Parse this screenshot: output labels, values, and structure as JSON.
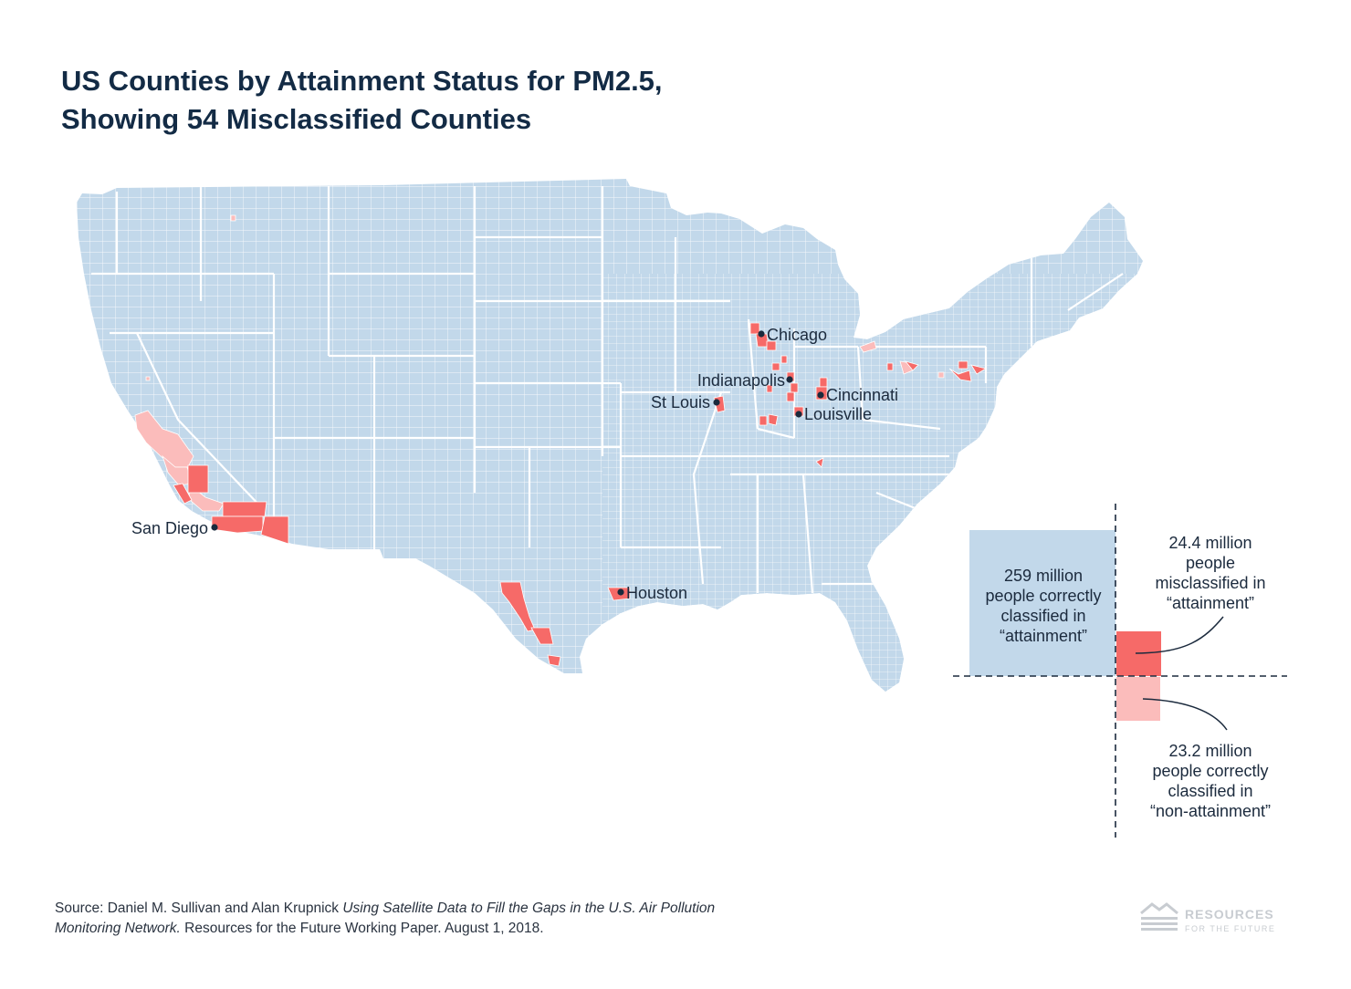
{
  "title": {
    "line1": "US Counties by Attainment Status for PM2.5,",
    "line2": "Showing 54 Misclassified Counties"
  },
  "colors": {
    "attainment_correct": "#c2d8ea",
    "misclassified_attainment": "#f66a68",
    "nonattainment_correct": "#fbbcbb",
    "county_border": "#ffffff",
    "text": "#1b2a3d"
  },
  "cities": [
    {
      "name": "Chicago"
    },
    {
      "name": "Indianapolis"
    },
    {
      "name": "Cincinnati"
    },
    {
      "name": "St Louis"
    },
    {
      "name": "Louisville"
    },
    {
      "name": "San Diego"
    },
    {
      "name": "Houston"
    }
  ],
  "legend": {
    "correct_attainment": {
      "lines": [
        "259 million",
        "people correctly",
        "classified in",
        "“attainment”"
      ],
      "population_millions": 259
    },
    "misclassified_attainment": {
      "lines": [
        "24.4 million",
        "people",
        "misclassified in",
        "“attainment”"
      ],
      "population_millions": 24.4
    },
    "correct_nonattainment": {
      "lines": [
        "23.2 million",
        "people correctly",
        "classified in",
        "“non-attainment”"
      ],
      "population_millions": 23.2
    }
  },
  "source": {
    "prefix": "Source: Daniel M. Sullivan and Alan Krupnick ",
    "title_italic": "Using Satellite Data to Fill the Gaps in the U.S. Air Pollution Monitoring Network.",
    "suffix": " Resources for the Future Working Paper. August 1, 2018."
  },
  "logo": {
    "line1": "RESOURCES",
    "line2": "FOR THE FUTURE"
  }
}
